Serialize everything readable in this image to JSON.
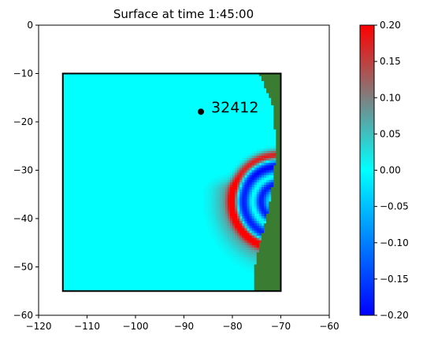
{
  "chart_data": {
    "type": "heatmap",
    "title": "Surface at time 1:45:00",
    "xlabel": "",
    "ylabel": "",
    "xlim": [
      -120,
      -60
    ],
    "ylim": [
      -60,
      0
    ],
    "x_ticks": [
      -120,
      -110,
      -100,
      -90,
      -80,
      -70,
      -60
    ],
    "y_ticks": [
      0,
      -10,
      -20,
      -30,
      -40,
      -50,
      -60
    ],
    "domain_box": {
      "x": [
        -115,
        -70
      ],
      "y": [
        -55,
        -10
      ]
    },
    "station": {
      "label": "32412",
      "x": -86.5,
      "y": -17.9
    },
    "colorbar": {
      "range": [
        -0.2,
        0.2
      ],
      "ticks": [
        0.2,
        0.15,
        0.1,
        0.05,
        0.0,
        -0.05,
        -0.1,
        -0.15,
        -0.2
      ],
      "tick_labels": [
        "0.20",
        "0.15",
        "0.10",
        "0.05",
        "0.00",
        "−0.05",
        "−0.10",
        "−0.15",
        "−0.20"
      ],
      "colors": [
        "#0000ff",
        "#00ffff",
        "#ff0000"
      ]
    },
    "background_value": 0.0,
    "land_color": "#3a7d32",
    "wave_center": {
      "x": -70.5,
      "y": -36.5
    },
    "features": [
      {
        "name": "leading-crest",
        "radius_deg": 9.5,
        "width_deg": 1.1,
        "amplitude": 0.2,
        "lat_range": [
          -48,
          -24
        ]
      },
      {
        "name": "trailing-trough",
        "radius_deg": 7.3,
        "width_deg": 1.5,
        "amplitude": -0.2,
        "lat_range": [
          -47,
          -26
        ]
      },
      {
        "name": "inner-crest",
        "radius_deg": 5.3,
        "width_deg": 0.8,
        "amplitude": 0.06,
        "lat_range": [
          -45,
          -28
        ]
      },
      {
        "name": "inner-trough",
        "radius_deg": 3.6,
        "width_deg": 1.2,
        "amplitude": -0.18,
        "lat_range": [
          -44,
          -29
        ]
      },
      {
        "name": "south-halo",
        "radius_deg": 10.5,
        "width_deg": 3.0,
        "amplitude": 0.07,
        "lat_range": [
          -56,
          -34
        ]
      }
    ]
  }
}
